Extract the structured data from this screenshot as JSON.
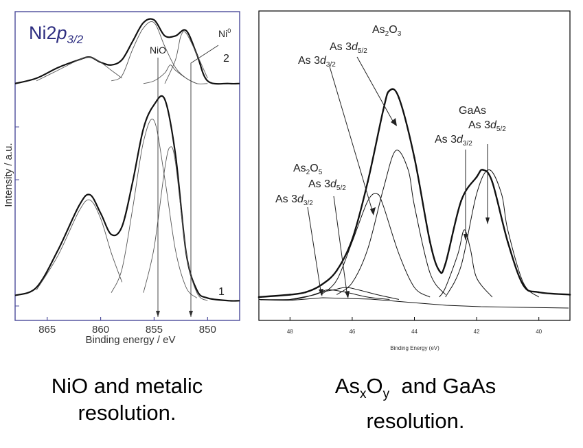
{
  "figure": {
    "left_caption": {
      "line1": "NiO and metalic",
      "line2": "resolution."
    },
    "right_caption": {
      "line1_pre": "As",
      "line1_sub1": "x",
      "line1_mid": "O",
      "line1_sub2": "y",
      "line1_post": "  and GaAs",
      "line2": "resolution."
    }
  },
  "chart_data": [
    {
      "type": "line",
      "panel": "left",
      "title": {
        "base": "Ni2",
        "italic": "p",
        "sub": "3/2"
      },
      "xlabel": "Binding energy / eV",
      "ylabel": "Intensity / a.u.",
      "xlim": [
        868,
        847
      ],
      "x_reversed": true,
      "x_ticks": [
        865,
        860,
        855,
        850
      ],
      "ylim": [
        0,
        100
      ],
      "grid": false,
      "annotations": [
        {
          "text": "NiO",
          "x": 855.0
        },
        {
          "text": "Ni",
          "sup": "0",
          "x": 851.5
        },
        {
          "text": "2",
          "spectrum": "2"
        },
        {
          "text": "1",
          "spectrum": "1"
        }
      ],
      "series": [
        {
          "spectrum": "1",
          "role": "envelope",
          "x": [
            868,
            866,
            864,
            862,
            861,
            860,
            859,
            858,
            857,
            856,
            855,
            854,
            853,
            852,
            851,
            850,
            848,
            847
          ],
          "y": [
            4,
            7,
            21,
            38,
            42,
            35,
            27,
            30,
            47,
            67,
            76,
            78,
            57,
            20,
            6,
            3,
            2,
            2
          ]
        },
        {
          "spectrum": "1",
          "role": "component",
          "x": [
            866,
            864,
            862,
            861,
            860,
            859,
            858
          ],
          "y": [
            6,
            19,
            36,
            40,
            33,
            20,
            9
          ]
        },
        {
          "spectrum": "1",
          "role": "component",
          "x": [
            859,
            858,
            857,
            856,
            855,
            854,
            853,
            852,
            851
          ],
          "y": [
            5,
            14,
            37,
            62,
            70,
            48,
            21,
            7,
            3
          ]
        },
        {
          "spectrum": "1",
          "role": "component",
          "x": [
            856,
            855,
            854,
            853.5,
            853,
            852,
            851,
            850
          ],
          "y": [
            5,
            22,
            52,
            60,
            54,
            20,
            5,
            2
          ]
        },
        {
          "spectrum": "2",
          "role": "envelope",
          "x": [
            868,
            866,
            864,
            862,
            861,
            860,
            859,
            858,
            857,
            856,
            855,
            854,
            853,
            852,
            851,
            850,
            848,
            847
          ],
          "y": [
            84,
            86,
            90,
            93,
            94,
            92,
            91,
            93,
            100,
            107,
            108,
            102,
            102,
            104,
            95,
            85,
            84,
            84
          ]
        },
        {
          "spectrum": "2",
          "role": "component",
          "x": [
            866,
            864,
            862,
            861,
            860,
            859,
            858
          ],
          "y": [
            85,
            89,
            93,
            94,
            92,
            89,
            86
          ]
        },
        {
          "spectrum": "2",
          "role": "component",
          "x": [
            859,
            858,
            857,
            856,
            855,
            854,
            853,
            852,
            851
          ],
          "y": [
            85,
            87,
            97,
            105,
            107,
            98,
            90,
            86,
            84
          ]
        },
        {
          "spectrum": "2",
          "role": "component",
          "x": [
            856,
            855,
            854,
            853.5,
            853,
            852,
            851,
            850
          ],
          "y": [
            84,
            85,
            88,
            91,
            89,
            86,
            84,
            84
          ]
        },
        {
          "spectrum": "2",
          "role": "component",
          "x": [
            854,
            853,
            852.5,
            852,
            851,
            850
          ],
          "y": [
            84,
            93,
            102,
            103,
            95,
            86
          ]
        }
      ]
    },
    {
      "type": "line",
      "panel": "right",
      "xlabel": "Binding Energy (eV)",
      "ylabel": "",
      "xlim": [
        49,
        39
      ],
      "x_reversed": true,
      "x_ticks": [
        48,
        46,
        44,
        42,
        40
      ],
      "ylim": [
        0,
        100
      ],
      "grid": false,
      "annotations": [
        {
          "lines": [
            {
              "pre": "As",
              "sub": "2",
              "mid": "O",
              "sub2": "3"
            }
          ],
          "label": "As2O3"
        },
        {
          "pre": "As 3",
          "italic": "d",
          "sub": "5/2",
          "group": "As2O3"
        },
        {
          "pre": "As 3",
          "italic": "d",
          "sub": "3/2",
          "group": "As2O3"
        },
        {
          "text": "GaAs"
        },
        {
          "pre": "As 3",
          "italic": "d",
          "sub": "5/2",
          "group": "GaAs"
        },
        {
          "pre": "As 3",
          "italic": "d",
          "sub": "3/2",
          "group": "GaAs"
        },
        {
          "pre": "As",
          "sub": "2",
          "mid": "O",
          "sub2": "5",
          "label": "As2O5"
        },
        {
          "pre": "As 3",
          "italic": "d",
          "sub": "5/2",
          "group": "As2O5"
        },
        {
          "pre": "As 3",
          "italic": "d",
          "sub": "3/2",
          "group": "As2O5"
        }
      ],
      "series": [
        {
          "role": "envelope",
          "x": [
            49,
            48,
            47.5,
            47,
            46.5,
            46,
            45.5,
            45,
            44.8,
            44.5,
            44,
            43.5,
            43.2,
            43,
            42.5,
            42,
            41.8,
            41.5,
            41,
            40.5,
            40,
            39
          ],
          "y": [
            2,
            3,
            4,
            7,
            13,
            26,
            50,
            80,
            88,
            85,
            60,
            25,
            13,
            16,
            42,
            52,
            55,
            50,
            25,
            7,
            4,
            3
          ]
        },
        {
          "role": "component",
          "x": [
            47,
            46.5,
            46,
            45.5,
            45.2,
            45,
            44.5,
            44,
            43.5
          ],
          "y": [
            3,
            9,
            25,
            42,
            45,
            40,
            20,
            6,
            2
          ]
        },
        {
          "role": "component",
          "x": [
            46.5,
            46,
            45.5,
            45,
            44.6,
            44.2,
            44,
            43.5,
            43
          ],
          "y": [
            3,
            8,
            22,
            47,
            63,
            55,
            40,
            12,
            3
          ]
        },
        {
          "role": "component",
          "x": [
            43.2,
            43,
            42.6,
            42.4,
            42.2,
            42,
            41.5
          ],
          "y": [
            2,
            6,
            20,
            30,
            22,
            10,
            2
          ]
        },
        {
          "role": "component",
          "x": [
            43,
            42.5,
            42,
            41.6,
            41.2,
            41,
            40.5,
            40
          ],
          "y": [
            2,
            15,
            45,
            55,
            45,
            30,
            8,
            2
          ]
        },
        {
          "role": "component",
          "x": [
            49,
            48,
            47.5,
            47,
            46.6,
            46.2,
            45.8,
            45.2,
            44.5
          ],
          "y": [
            1,
            1,
            2,
            4,
            5,
            6,
            5,
            3,
            1
          ]
        },
        {
          "role": "component",
          "x": [
            48,
            47.2,
            46.8,
            46.2,
            45.5,
            44.8
          ],
          "y": [
            1,
            3,
            5,
            4,
            2,
            1
          ]
        }
      ]
    }
  ]
}
